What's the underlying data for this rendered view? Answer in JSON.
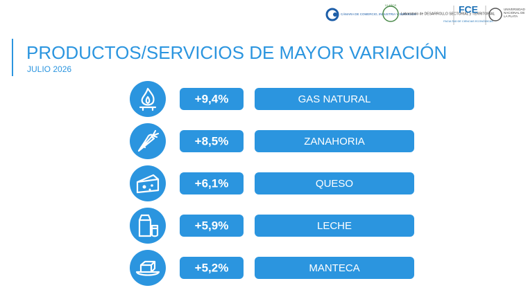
{
  "header": {
    "logos": {
      "camara": "CÁMARA DE COMERCIO, INDUSTRIA Y SERVICIOS",
      "laboratorio_badge": "10 AÑOS",
      "laboratorio": "Laboratorio de DESARROLLO SECTORIAL y TERRITORIAL",
      "fce": "FCE",
      "fce_sub": "FACULTAD DE CIENCIAS ECONÓMICAS",
      "unlp": "UNIVERSIDAD NACIONAL DE LA PLATA"
    },
    "title": "PRODUCTOS/SERVICIOS DE MAYOR VARIACIÓN",
    "subtitle": "JULIO 2026"
  },
  "items": [
    {
      "change": "+9,4%",
      "name": "GAS NATURAL"
    },
    {
      "change": "+8,5%",
      "name": "ZANAHORIA"
    },
    {
      "change": "+6,1%",
      "name": "QUESO"
    },
    {
      "change": "+5,9%",
      "name": "LECHE"
    },
    {
      "change": "+5,2%",
      "name": "MANTECA"
    }
  ]
}
